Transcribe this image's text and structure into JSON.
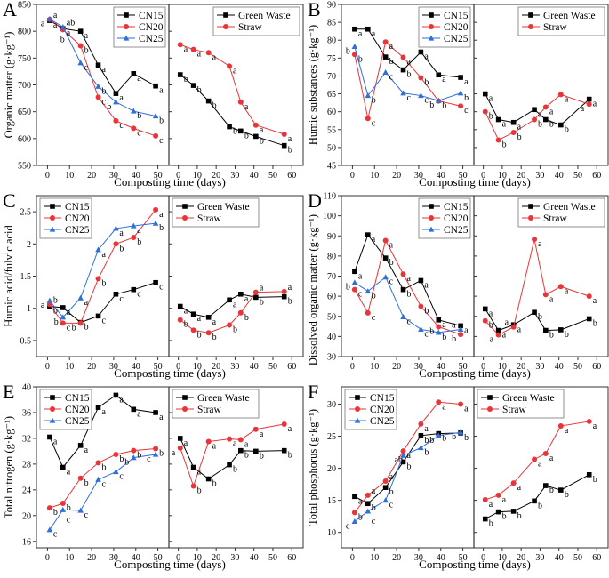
{
  "colors": {
    "CN15": "#000000",
    "CN20": "#e8353a",
    "CN25": "#2f6fd8",
    "Green Waste": "#000000",
    "Straw": "#e8353a"
  },
  "markers": {
    "CN15": "square",
    "CN20": "circle",
    "CN25": "triangle",
    "Green Waste": "square",
    "Straw": "circle"
  },
  "chart_data": [
    {
      "type": "line",
      "panel": "A",
      "ylabel": "Organic matter (g·kg⁻¹)",
      "xlabel": "Composting time (days)",
      "ylim": [
        550,
        850
      ],
      "yticks": [
        550,
        600,
        650,
        700,
        750,
        800,
        850
      ],
      "left": {
        "x": [
          1,
          7,
          15,
          23,
          31,
          39,
          49
        ],
        "xticks": [
          0,
          10,
          20,
          30,
          40,
          50
        ],
        "xlim": [
          -5,
          55
        ],
        "legend": "top-right",
        "series": [
          {
            "name": "CN15",
            "values": [
              820,
              805,
              800,
              737,
              684,
              721,
              698
            ],
            "letters": [
              "a",
              "a",
              "a",
              "a",
              "a",
              "a",
              "a"
            ]
          },
          {
            "name": "CN20",
            "values": [
              822,
              803,
              773,
              677,
              633,
              619,
              605
            ],
            "letters": [
              "a",
              "b",
              "b",
              "c",
              "c",
              "c",
              "c"
            ]
          },
          {
            "name": "CN25",
            "values": [
              823,
              808,
              741,
              697,
              668,
              651,
              642
            ],
            "letters": [
              "a",
              "ab",
              "c",
              "b",
              "b",
              "b",
              "b"
            ]
          }
        ]
      },
      "right": {
        "x": [
          1,
          8,
          16,
          27,
          33,
          41,
          56
        ],
        "xticks": [
          0,
          10,
          20,
          30,
          40,
          50,
          60
        ],
        "xlim": [
          -5,
          66
        ],
        "legend": "top-right",
        "series": [
          {
            "name": "Green Waste",
            "values": [
              719,
              699,
              670,
              622,
              614,
              604,
              587
            ],
            "letters": [
              "b",
              "b",
              "b",
              "b",
              "b",
              "b",
              "b"
            ]
          },
          {
            "name": "Straw",
            "values": [
              775,
              766,
              760,
              735,
              668,
              625,
              608
            ],
            "letters": [
              "a",
              "a",
              "a",
              "a",
              "a",
              "a",
              "a"
            ]
          }
        ]
      }
    },
    {
      "type": "line",
      "panel": "B",
      "ylabel": "Humic substances (g·kg⁻¹)",
      "xlabel": "Composting time (days)",
      "ylim": [
        45,
        90
      ],
      "yticks": [
        45,
        50,
        55,
        60,
        65,
        70,
        75,
        80,
        85,
        90
      ],
      "left": {
        "x": [
          1,
          7,
          15,
          23,
          31,
          39,
          49
        ],
        "xticks": [
          0,
          10,
          20,
          30,
          40,
          50
        ],
        "xlim": [
          -5,
          55
        ],
        "legend": "top-right",
        "series": [
          {
            "name": "CN15",
            "values": [
              83.1,
              83.1,
              75.3,
              71.7,
              76.7,
              70.3,
              69.6
            ],
            "letters": [
              "a",
              "a",
              "b",
              "b",
              "a",
              "a",
              "a"
            ]
          },
          {
            "name": "CN20",
            "values": [
              76,
              58.1,
              79.5,
              75.2,
              69.5,
              63,
              61.6
            ],
            "letters": [
              "b",
              "c",
              "a",
              "a",
              "b",
              "b",
              "c"
            ]
          },
          {
            "name": "CN25",
            "values": [
              78.2,
              64.5,
              71,
              65.2,
              64.5,
              63.1,
              65.2
            ],
            "letters": [
              "b",
              "b",
              "c",
              "c",
              "c",
              "b",
              "b"
            ]
          }
        ]
      },
      "right": {
        "x": [
          1,
          8,
          16,
          27,
          33,
          41,
          56
        ],
        "xticks": [
          0,
          10,
          20,
          30,
          40,
          50,
          60
        ],
        "xlim": [
          -5,
          66
        ],
        "legend": "top-right",
        "series": [
          {
            "name": "Green Waste",
            "values": [
              65,
              57.8,
              57,
              60.6,
              57.8,
              56.3,
              63.5
            ],
            "letters": [
              "a",
              "a",
              "a",
              "a",
              "b",
              "b",
              "a"
            ]
          },
          {
            "name": "Straw",
            "values": [
              60,
              52.1,
              54.2,
              57.8,
              61.3,
              64.8,
              62.1
            ],
            "letters": [
              "b",
              "b",
              "b",
              "b",
              "a",
              "a",
              "a"
            ]
          }
        ]
      }
    },
    {
      "type": "line",
      "panel": "C",
      "ylabel": "Humic acid/fulvic acid",
      "xlabel": "Composting time (days)",
      "ylim": [
        0.25,
        2.75
      ],
      "yticks": [
        0.5,
        1.0,
        1.5,
        2.0,
        2.5
      ],
      "left": {
        "x": [
          1,
          7,
          15,
          23,
          31,
          39,
          49
        ],
        "xticks": [
          0,
          10,
          20,
          30,
          40,
          50
        ],
        "xlim": [
          -5,
          55
        ],
        "legend": "top-left",
        "series": [
          {
            "name": "CN15",
            "values": [
              1.03,
              1.01,
              0.78,
              0.88,
              1.22,
              1.29,
              1.4
            ],
            "letters": [
              "b",
              "a",
              "b",
              "c",
              "c",
              "c",
              "c"
            ]
          },
          {
            "name": "CN20",
            "values": [
              1.06,
              0.77,
              0.77,
              1.46,
              2.0,
              2.1,
              2.53
            ],
            "letters": [
              "b",
              "c",
              "b",
              "b",
              "b",
              "b",
              "a"
            ]
          },
          {
            "name": "CN25",
            "values": [
              1.12,
              0.86,
              1.16,
              1.91,
              2.24,
              2.28,
              2.32
            ],
            "letters": [
              "a",
              "b",
              "a",
              "a",
              "a",
              "a",
              "b"
            ]
          }
        ]
      },
      "right": {
        "x": [
          1,
          8,
          16,
          27,
          33,
          41,
          56
        ],
        "xticks": [
          0,
          10,
          20,
          30,
          40,
          50,
          60
        ],
        "xlim": [
          -5,
          66
        ],
        "legend": "top-left",
        "series": [
          {
            "name": "Green Waste",
            "values": [
              1.03,
              0.91,
              0.86,
              1.13,
              1.22,
              1.17,
              1.18
            ],
            "letters": [
              "a",
              "a",
              "a",
              "a",
              "a",
              "b",
              "b"
            ]
          },
          {
            "name": "Straw",
            "values": [
              0.82,
              0.66,
              0.62,
              0.74,
              0.93,
              1.25,
              1.26
            ],
            "letters": [
              "b",
              "b",
              "b",
              "b",
              "b",
              "a",
              "a"
            ]
          }
        ]
      }
    },
    {
      "type": "line",
      "panel": "D",
      "ylabel": "Dissolved organic matter (g·kg⁻¹)",
      "xlabel": "Composting time (days)",
      "ylim": [
        30,
        110
      ],
      "yticks": [
        30,
        40,
        50,
        60,
        70,
        80,
        90,
        100,
        110
      ],
      "left": {
        "x": [
          1,
          7,
          15,
          23,
          31,
          39,
          49
        ],
        "xticks": [
          0,
          10,
          20,
          30,
          40,
          50
        ],
        "xlim": [
          -5,
          55
        ],
        "legend": "top-right",
        "series": [
          {
            "name": "CN15",
            "values": [
              72.3,
              90.5,
              79,
              63.3,
              67.8,
              48.2,
              45.3
            ],
            "letters": [
              "a",
              "a",
              "b",
              "b",
              "a",
              "a",
              "a"
            ]
          },
          {
            "name": "CN20",
            "values": [
              63.3,
              51.7,
              87.7,
              71,
              55,
              44.8,
              41
            ],
            "letters": [
              "c",
              "c",
              "a",
              "a",
              "b",
              "b",
              "b"
            ]
          },
          {
            "name": "CN25",
            "values": [
              66.8,
              62.5,
              69.5,
              49.7,
              43.5,
              42,
              43.5
            ],
            "letters": [
              "b",
              "b",
              "c",
              "c",
              "c",
              "b",
              "a"
            ]
          }
        ]
      },
      "right": {
        "x": [
          1,
          8,
          16,
          27,
          33,
          41,
          56
        ],
        "xticks": [
          0,
          10,
          20,
          30,
          40,
          50,
          60
        ],
        "xlim": [
          -5,
          66
        ],
        "legend": "top-right",
        "series": [
          {
            "name": "Green Waste",
            "values": [
              53.7,
              43,
              45.8,
              52,
              43,
              43.3,
              48.8
            ],
            "letters": [
              "a",
              "a",
              "a",
              "b",
              "b",
              "b",
              "b"
            ]
          },
          {
            "name": "Straw",
            "values": [
              47.8,
              40.8,
              44.7,
              88.3,
              60.8,
              64.8,
              60
            ],
            "letters": [
              "b",
              "a",
              "a",
              "a",
              "a",
              "a",
              "a"
            ]
          }
        ]
      }
    },
    {
      "type": "line",
      "panel": "E",
      "ylabel": "Total nitrogen (g·kg⁻¹)",
      "xlabel": "Composting time (days)",
      "ylim": [
        15,
        40
      ],
      "yticks": [
        16,
        20,
        24,
        28,
        32,
        36,
        40
      ],
      "left": {
        "x": [
          1,
          7,
          15,
          23,
          31,
          39,
          49
        ],
        "xticks": [
          0,
          10,
          20,
          30,
          40,
          50
        ],
        "xlim": [
          -5,
          55
        ],
        "legend": "top-left",
        "series": [
          {
            "name": "CN15",
            "values": [
              32.2,
              27.5,
              30.9,
              36.8,
              38.7,
              36.5,
              36
            ],
            "letters": [
              "a",
              "a",
              "a",
              "a",
              "a",
              "a",
              "a"
            ]
          },
          {
            "name": "CN20",
            "values": [
              21.2,
              21.9,
              25.8,
              28.2,
              29.5,
              30.1,
              30.4
            ],
            "letters": [
              "b",
              "b",
              "b",
              "b",
              "b",
              "b",
              "b"
            ]
          },
          {
            "name": "CN25",
            "values": [
              17.8,
              20.9,
              20.8,
              25.6,
              26.8,
              29,
              29.5
            ],
            "letters": [
              "c",
              "c",
              "c",
              "c",
              "c",
              "b",
              "c"
            ]
          }
        ]
      },
      "right": {
        "x": [
          1,
          8,
          16,
          27,
          33,
          41,
          56
        ],
        "xticks": [
          0,
          10,
          20,
          30,
          40,
          50,
          60
        ],
        "xlim": [
          -5,
          66
        ],
        "legend": "top-left",
        "series": [
          {
            "name": "Green Waste",
            "values": [
              32,
              27.5,
              25.7,
              27.9,
              30.1,
              30,
              30.1
            ],
            "letters": [
              "a",
              "a",
              "b",
              "b",
              "b",
              "b",
              "b"
            ]
          },
          {
            "name": "Straw",
            "values": [
              30.5,
              24.6,
              31.5,
              31.9,
              31.8,
              33.4,
              34.2
            ],
            "letters": [
              "a",
              "b",
              "a",
              "a",
              "a",
              "a",
              "a"
            ]
          }
        ]
      }
    },
    {
      "type": "line",
      "panel": "F",
      "ylabel": "Total phosphorus (g·kg⁻¹)",
      "xlabel": "Composting time (days)",
      "ylim": [
        7.6,
        32.7
      ],
      "yticks": [
        10,
        15,
        20,
        25,
        30
      ],
      "left": {
        "x": [
          1,
          7,
          15,
          23,
          31,
          39,
          49
        ],
        "xticks": [
          0,
          10,
          20,
          30,
          40,
          50
        ],
        "xlim": [
          -5,
          55
        ],
        "legend": "top-left",
        "series": [
          {
            "name": "CN15",
            "values": [
              15.6,
              14.5,
              17,
              21,
              25.1,
              25.4,
              25.5
            ],
            "letters": [
              "a",
              "b",
              "b",
              "b",
              "b",
              "b",
              "b"
            ]
          },
          {
            "name": "CN20",
            "values": [
              13.1,
              15.8,
              18,
              22.7,
              26.9,
              30.3,
              30
            ],
            "letters": [
              "b",
              "a",
              "a",
              "a",
              "a",
              "a",
              "a"
            ]
          },
          {
            "name": "CN25",
            "values": [
              11.7,
              13.3,
              15,
              22,
              23.2,
              25.1,
              25.6
            ],
            "letters": [
              "c",
              "c",
              "c",
              "ab",
              "b",
              "b",
              "b"
            ]
          }
        ]
      },
      "right": {
        "x": [
          1,
          8,
          16,
          27,
          33,
          41,
          56
        ],
        "xticks": [
          0,
          10,
          20,
          30,
          40,
          50,
          60
        ],
        "xlim": [
          -5,
          66
        ],
        "legend": "top-left",
        "series": [
          {
            "name": "Green Waste",
            "values": [
              12.1,
              13.2,
              13.3,
              14.9,
              17.3,
              16.6,
              19
            ],
            "letters": [
              "b",
              "b",
              "b",
              "b",
              "b",
              "b",
              "b"
            ]
          },
          {
            "name": "Straw",
            "values": [
              15.1,
              15.8,
              17.7,
              21.4,
              22.3,
              26.6,
              27.3
            ],
            "letters": [
              "a",
              "a",
              "a",
              "a",
              "a",
              "a",
              "a"
            ]
          }
        ]
      }
    }
  ]
}
